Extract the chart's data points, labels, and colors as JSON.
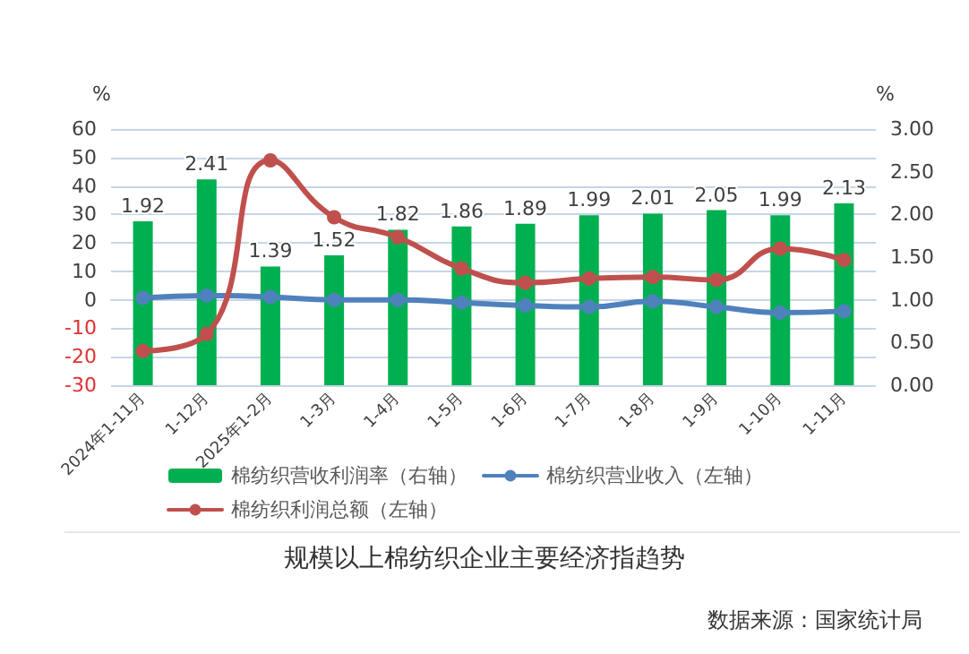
{
  "chart_data": {
    "type": "bar",
    "title": "规模以上棉纺织企业主要经济指趋势",
    "ylabel": "%",
    "y2label": "%",
    "annotations": [
      "数据来源：国家统计局"
    ],
    "categories": [
      "2024年1-11月",
      "1-12月",
      "2025年1-2月",
      "1-3月",
      "1-4月",
      "1-5月",
      "1-6月",
      "1-7月",
      "1-8月",
      "1-9月",
      "1-10月",
      "1-11月"
    ],
    "series": [
      {
        "name": "棉纺织营收利润率（右轴）",
        "axis": "y2",
        "color": "#00b050",
        "values": [
          1.92,
          2.41,
          1.39,
          1.52,
          1.82,
          1.86,
          1.89,
          1.99,
          2.01,
          2.05,
          1.99,
          2.13
        ],
        "data_labels": true
      },
      {
        "name": "棉纺织营业收入（左轴）",
        "type": "line",
        "color": "#4f81bd",
        "values": [
          0.7,
          1.5,
          1,
          0,
          0,
          -1,
          -2,
          -2.5,
          -0.5,
          -2.5,
          -4.5,
          -4
        ]
      },
      {
        "name": "棉纺织利润总额（左轴）",
        "type": "line",
        "color": "#c0504d",
        "values": [
          -18,
          -12,
          49,
          29,
          22,
          11,
          6,
          7.5,
          8,
          7,
          18,
          14
        ]
      }
    ],
    "ylim": [
      -30,
      60
    ],
    "yticks": [
      -30,
      -20,
      -10,
      0,
      10,
      20,
      30,
      40,
      50,
      60
    ],
    "y2lim": [
      0,
      3
    ],
    "y2ticks": [
      {
        "value": 0,
        "label": "0.00"
      },
      {
        "value": 0.5,
        "label": "0.50"
      },
      {
        "value": 1,
        "label": "1.00"
      },
      {
        "value": 1.5,
        "label": "1.50"
      },
      {
        "value": 2,
        "label": "2.00"
      },
      {
        "value": 2.5,
        "label": "2.50"
      },
      {
        "value": 3,
        "label": "3.00"
      }
    ],
    "grid": "y",
    "legend": "bottom",
    "marker": "circle",
    "line_style": "solid"
  }
}
